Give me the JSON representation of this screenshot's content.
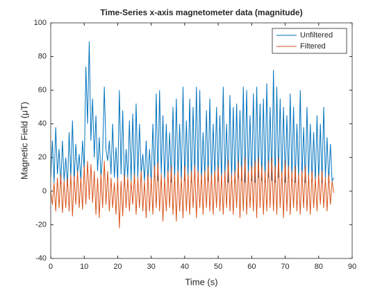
{
  "chart_data": {
    "type": "line",
    "title": "Time-Series x-axis magnetometer data (magnitude)",
    "x_label": "Time (s)",
    "y_label": "Magnetic Field (μT)",
    "x": [
      0,
      0.5,
      1,
      1.5,
      2,
      2.5,
      3,
      3.5,
      4,
      4.5,
      5,
      5.5,
      6,
      6.5,
      7,
      7.5,
      8,
      8.5,
      9,
      9.5,
      10,
      10.5,
      11,
      11.5,
      12,
      12.5,
      13,
      13.5,
      14,
      14.5,
      15,
      15.5,
      16,
      16.5,
      17,
      17.5,
      18,
      18.5,
      19,
      19.5,
      20,
      20.5,
      21,
      21.5,
      22,
      22.5,
      23,
      23.5,
      24,
      24.5,
      25,
      25.5,
      26,
      26.5,
      27,
      27.5,
      28,
      28.5,
      29,
      29.5,
      30,
      30.5,
      31,
      31.5,
      32,
      32.5,
      33,
      33.5,
      34,
      34.5,
      35,
      35.5,
      36,
      36.5,
      37,
      37.5,
      38,
      38.5,
      39,
      39.5,
      40,
      40.5,
      41,
      41.5,
      42,
      42.5,
      43,
      43.5,
      44,
      44.5,
      45,
      45.5,
      46,
      46.5,
      47,
      47.5,
      48,
      48.5,
      49,
      49.5,
      50,
      50.5,
      51,
      51.5,
      52,
      52.5,
      53,
      53.5,
      54,
      54.5,
      55,
      55.5,
      56,
      56.5,
      57,
      57.5,
      58,
      58.5,
      59,
      59.5,
      60,
      60.5,
      61,
      61.5,
      62,
      62.5,
      63,
      63.5,
      64,
      64.5,
      65,
      65.5,
      66,
      66.5,
      67,
      67.5,
      68,
      68.5,
      69,
      69.5,
      70,
      70.5,
      71,
      71.5,
      72,
      72.5,
      73,
      73.5,
      74,
      74.5,
      75,
      75.5,
      76,
      76.5,
      77,
      77.5,
      78,
      78.5,
      79,
      79.5,
      80,
      80.5,
      81,
      81.5,
      82,
      82.5,
      83,
      83.5,
      84,
      84.5
    ],
    "series": [
      {
        "name": "Unfiltered",
        "color": "#0072BD",
        "values": [
          8,
          30,
          5,
          38,
          10,
          25,
          4,
          30,
          6,
          20,
          3,
          35,
          8,
          42,
          5,
          28,
          10,
          22,
          6,
          30,
          12,
          74,
          40,
          89,
          30,
          55,
          20,
          45,
          12,
          32,
          8,
          22,
          62,
          25,
          18,
          30,
          10,
          40,
          8,
          26,
          5,
          60,
          10,
          48,
          4,
          25,
          8,
          42,
          6,
          46,
          5,
          52,
          8,
          40,
          10,
          22,
          6,
          30,
          5,
          25,
          4,
          40,
          8,
          58,
          6,
          60,
          10,
          45,
          5,
          40,
          8,
          35,
          5,
          50,
          6,
          55,
          8,
          40,
          5,
          62,
          6,
          42,
          8,
          55,
          5,
          50,
          8,
          62,
          6,
          60,
          5,
          35,
          8,
          48,
          6,
          55,
          5,
          40,
          8,
          50,
          6,
          45,
          5,
          62,
          8,
          40,
          5,
          57,
          6,
          50,
          5,
          52,
          8,
          48,
          6,
          62,
          5,
          60,
          8,
          45,
          6,
          58,
          5,
          62,
          8,
          52,
          6,
          55,
          5,
          64,
          8,
          50,
          6,
          72,
          5,
          62,
          8,
          55,
          6,
          50,
          5,
          45,
          8,
          58,
          6,
          50,
          5,
          40,
          8,
          60,
          6,
          38,
          5,
          50,
          8,
          40,
          6,
          35,
          5,
          45,
          6,
          40,
          5,
          50,
          8,
          32,
          5,
          28,
          6,
          8
        ]
      },
      {
        "name": "Filtered",
        "color": "#D95319",
        "values": [
          0,
          -8,
          5,
          -12,
          8,
          -10,
          10,
          -13,
          6,
          -10,
          8,
          -12,
          10,
          -15,
          9,
          -8,
          12,
          -10,
          8,
          -11,
          15,
          -8,
          18,
          -5,
          16,
          -7,
          12,
          -14,
          8,
          -16,
          10,
          -10,
          18,
          -8,
          12,
          -12,
          8,
          -10,
          5,
          -14,
          8,
          -22,
          6,
          -15,
          10,
          -10,
          8,
          -12,
          6,
          -8,
          10,
          -14,
          8,
          -10,
          12,
          -12,
          6,
          -16,
          10,
          -12,
          8,
          -14,
          15,
          -10,
          17,
          -12,
          10,
          -18,
          8,
          -12,
          12,
          -10,
          15,
          -14,
          10,
          -18,
          12,
          -12,
          8,
          -16,
          15,
          -12,
          10,
          -14,
          12,
          -10,
          15,
          -16,
          12,
          -10,
          10,
          -14,
          12,
          -10,
          15,
          -12,
          10,
          -14,
          12,
          -10,
          15,
          -12,
          10,
          -14,
          12,
          -10,
          18,
          -12,
          10,
          -14,
          12,
          -10,
          18,
          -16,
          15,
          -12,
          20,
          -14,
          12,
          -10,
          15,
          -12,
          18,
          -16,
          20,
          -10,
          15,
          -14,
          12,
          -12,
          18,
          -10,
          20,
          -12,
          15,
          -14,
          20,
          -10,
          12,
          -16,
          18,
          -12,
          15,
          -14,
          12,
          -10,
          15,
          -12,
          10,
          -14,
          12,
          -10,
          15,
          -12,
          10,
          -14,
          12,
          -10,
          8,
          -12,
          10,
          -8,
          12,
          -10,
          8,
          -12,
          10,
          -8,
          6,
          -1
        ]
      }
    ],
    "xlim": [
      0,
      90
    ],
    "xticks": [
      0,
      10,
      20,
      30,
      40,
      50,
      60,
      70,
      80,
      90
    ],
    "ylim": [
      -40,
      100
    ],
    "yticks": [
      -40,
      -20,
      0,
      20,
      40,
      60,
      80,
      100
    ],
    "legend": "northeast",
    "grid": false
  }
}
